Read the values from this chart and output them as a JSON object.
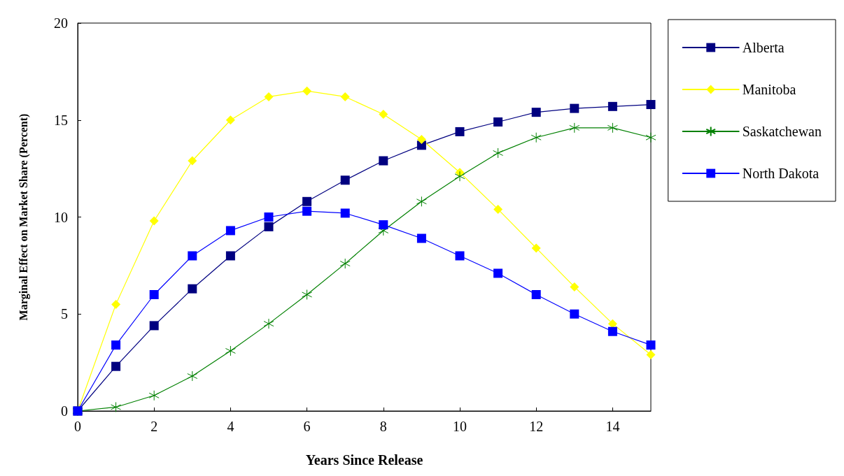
{
  "chart_data": {
    "type": "line",
    "xlabel": "Years Since Release",
    "ylabel": "Marginal Effect on Market Share (Percent)",
    "x": [
      0,
      1,
      2,
      3,
      4,
      5,
      6,
      7,
      8,
      9,
      10,
      11,
      12,
      13,
      14,
      15
    ],
    "series": [
      {
        "name": "Alberta",
        "color": "#000080",
        "marker": "square",
        "values": [
          0,
          2.3,
          4.4,
          6.3,
          8.0,
          9.5,
          10.8,
          11.9,
          12.9,
          13.7,
          14.4,
          14.9,
          15.4,
          15.6,
          15.7,
          15.8
        ]
      },
      {
        "name": "Manitoba",
        "color": "#ffff00",
        "marker": "diamond",
        "values": [
          0,
          5.5,
          9.8,
          12.9,
          15.0,
          16.2,
          16.5,
          16.2,
          15.3,
          14.0,
          12.3,
          10.4,
          8.4,
          6.4,
          4.5,
          2.9
        ]
      },
      {
        "name": "Saskatchewan",
        "color": "#008000",
        "marker": "cross",
        "values": [
          0,
          0.2,
          0.8,
          1.8,
          3.1,
          4.5,
          6.0,
          7.6,
          9.3,
          10.8,
          12.1,
          13.3,
          14.1,
          14.6,
          14.6,
          14.1
        ]
      },
      {
        "name": "North Dakota",
        "color": "#0000ff",
        "marker": "square",
        "values": [
          0,
          3.4,
          6.0,
          8.0,
          9.3,
          10.0,
          10.3,
          10.2,
          9.6,
          8.9,
          8.0,
          7.1,
          6.0,
          5.0,
          4.1,
          3.4
        ]
      }
    ],
    "xlim": [
      0,
      15
    ],
    "xticks": [
      0,
      2,
      4,
      6,
      8,
      10,
      12,
      14
    ],
    "ylim": [
      0,
      20
    ],
    "yticks": [
      0,
      5,
      10,
      15,
      20
    ],
    "grid": false,
    "legend": "right",
    "line_style": "solid"
  }
}
